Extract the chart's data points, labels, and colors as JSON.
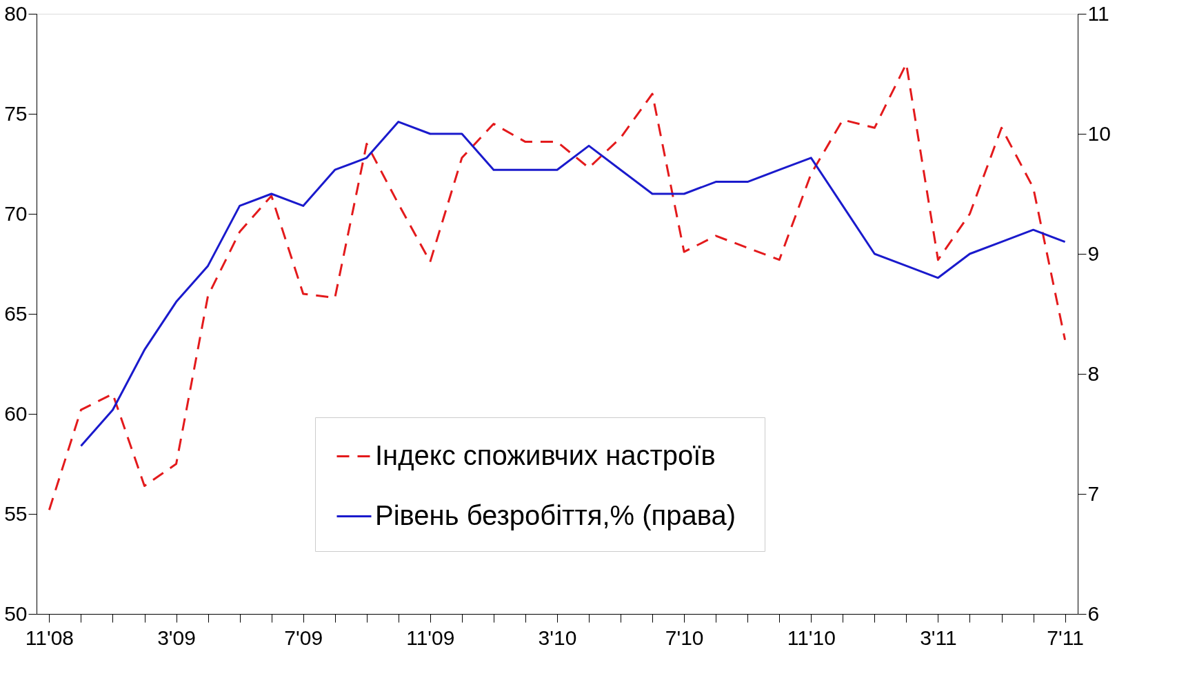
{
  "chart_data": {
    "type": "line",
    "categories": [
      "11'08",
      null,
      null,
      null,
      "3'09",
      null,
      null,
      null,
      "7'09",
      null,
      null,
      null,
      "11'09",
      null,
      null,
      null,
      "3'10",
      null,
      null,
      null,
      "7'10",
      null,
      null,
      null,
      "11'10",
      null,
      null,
      null,
      "3'11",
      null,
      null,
      null,
      "7'11"
    ],
    "series": [
      {
        "name": "Індекс споживчих настроїв",
        "color": "#e31a1c",
        "line_style": "dashed",
        "values": [
          55.2,
          60.2,
          61.0,
          56.4,
          57.5,
          65.9,
          69.1,
          70.9,
          66.0,
          65.8,
          73.5,
          70.5,
          67.6,
          72.8,
          74.5,
          73.6,
          73.6,
          72.3,
          73.8,
          76.0,
          68.1,
          68.9,
          68.3,
          67.7,
          72.0,
          74.7,
          74.3,
          77.5,
          67.7,
          70.0,
          74.3,
          71.3,
          63.7
        ]
      },
      {
        "name": "Рівень безробіття,%  (права)",
        "color": "#1a1acc",
        "line_style": "solid",
        "axis": "y2",
        "values": [
          null,
          7.4,
          7.7,
          8.2,
          8.6,
          8.9,
          9.4,
          9.5,
          9.4,
          9.7,
          9.8,
          10.1,
          10.0,
          10.0,
          9.7,
          9.7,
          9.7,
          9.9,
          9.7,
          9.5,
          9.5,
          9.6,
          9.6,
          9.7,
          9.8,
          9.4,
          9.0,
          8.9,
          8.8,
          9.0,
          9.1,
          9.2,
          9.1
        ]
      }
    ],
    "ylim": [
      50,
      80
    ],
    "yticks": [
      50,
      55,
      60,
      65,
      70,
      75,
      80
    ],
    "y2lim": [
      6,
      11
    ],
    "y2ticks": [
      6,
      7,
      8,
      9,
      10,
      11
    ],
    "grid": false,
    "legend": "bottom right"
  }
}
